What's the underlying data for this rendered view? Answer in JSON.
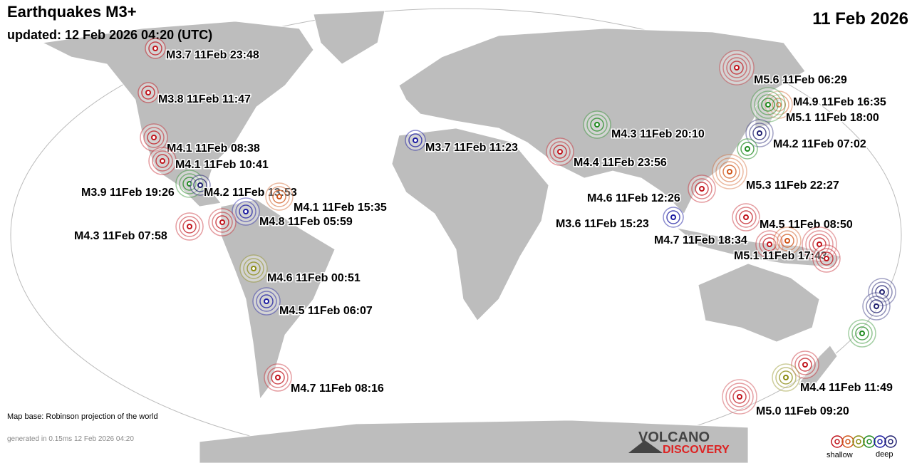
{
  "header": {
    "title": "Earthquakes M3+",
    "updated": "updated: 12 Feb 2026 04:20 (UTC)",
    "date": "11 Feb 2026"
  },
  "quakes": [
    "M3.7 11Feb 23:48",
    "M3.8 11Feb 11:47",
    "M4.1 11Feb 08:38",
    "M4.1 11Feb 10:41",
    "M3.9 11Feb 19:26",
    "M4.2 11Feb 13:53",
    "M4.1 11Feb 15:35",
    "M4.8 11Feb 05:59",
    "M4.3 11Feb 07:58",
    "M4.6 11Feb 00:51",
    "M4.5 11Feb 06:07",
    "M4.7 11Feb 08:16",
    "M3.7 11Feb 11:23",
    "M4.3 11Feb 20:10",
    "M4.4 11Feb 23:56",
    "M5.6 11Feb 06:29",
    "M4.9 11Feb 16:35",
    "M5.1 11Feb 18:00",
    "M4.2 11Feb 07:02",
    "M5.3 11Feb 22:27",
    "M4.6 11Feb 12:26",
    "M3.6 11Feb 15:23",
    "M4.5 11Feb 08:50",
    "M4.7 11Feb 18:34",
    "M5.1 11Feb 17:43",
    "M4.4 11Feb 11:49",
    "M5.0 11Feb 09:20"
  ],
  "footer": {
    "map_base": "Map base: Robinson projection of the world",
    "generated": "generated in 0.15ms 12 Feb 2026 04:20",
    "logo_top": "VOLCANO",
    "logo_bottom": "DISCOVERY",
    "legend_shallow": "shallow",
    "legend_deep": "deep"
  }
}
